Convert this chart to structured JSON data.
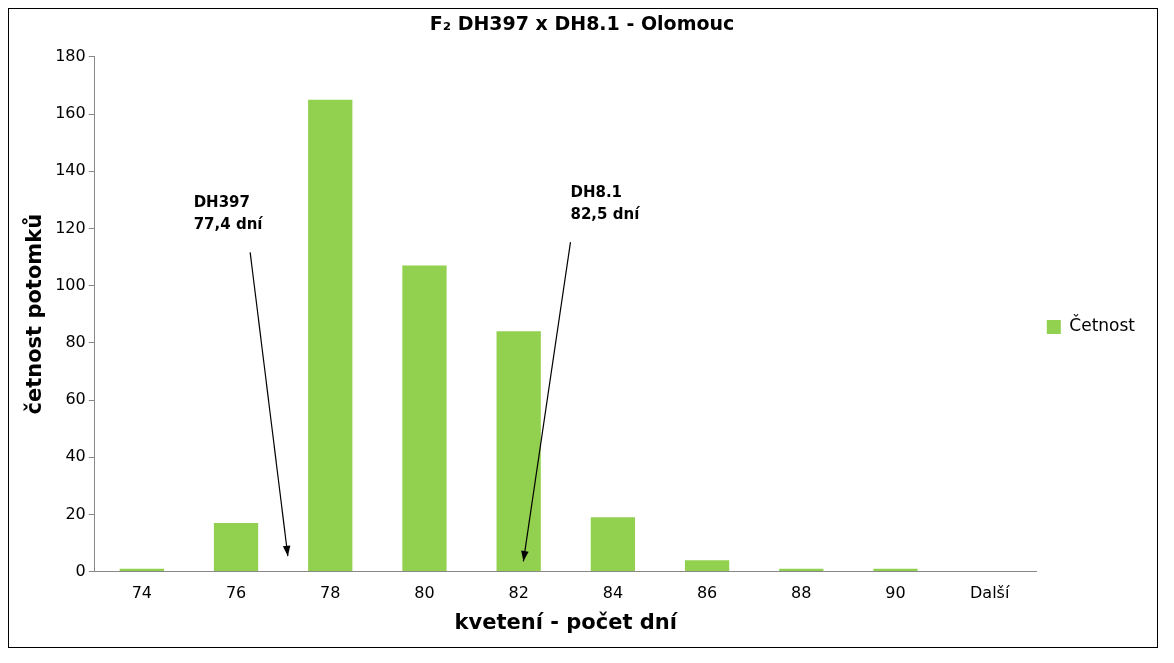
{
  "chart_data": {
    "type": "bar",
    "title": "F₂ DH397 x DH8.1 - Olomouc",
    "xlabel": "kvetení - počet dní",
    "ylabel": "četnost potomků",
    "categories": [
      "74",
      "76",
      "78",
      "80",
      "82",
      "84",
      "86",
      "88",
      "90",
      "Další"
    ],
    "series": [
      {
        "name": "Četnost",
        "color": "#92d050",
        "values": [
          1,
          17,
          165,
          107,
          84,
          19,
          4,
          1,
          1,
          0
        ]
      }
    ],
    "ylim": [
      0,
      180
    ],
    "yticks": [
      0,
      20,
      40,
      60,
      80,
      100,
      120,
      140,
      160,
      180
    ],
    "grid": false,
    "legend": "right",
    "annotations": [
      "DH397\n77,4 dní",
      "DH8.1\n82,5 dní"
    ]
  }
}
